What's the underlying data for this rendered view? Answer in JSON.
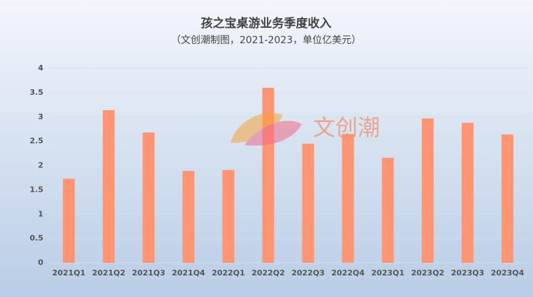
{
  "chart_data": {
    "type": "bar",
    "title": "孩之宝桌游业务季度收入",
    "subtitle": "（文创潮制图，2021-2023，单位亿美元）",
    "watermark": "文创潮",
    "categories": [
      "2021Q1",
      "2021Q2",
      "2021Q3",
      "2021Q4",
      "2022Q1",
      "2022Q2",
      "2022Q3",
      "2022Q4",
      "2023Q1",
      "2023Q2",
      "2023Q3",
      "2023Q4"
    ],
    "values": [
      1.73,
      3.14,
      2.68,
      1.89,
      1.91,
      3.6,
      2.45,
      2.65,
      2.16,
      2.97,
      2.88,
      2.64
    ],
    "color": "#ff9573",
    "ylim": [
      0,
      4
    ],
    "yticks": [
      0,
      0.5,
      1,
      1.5,
      2,
      2.5,
      3,
      3.5,
      4
    ],
    "grid": true
  }
}
